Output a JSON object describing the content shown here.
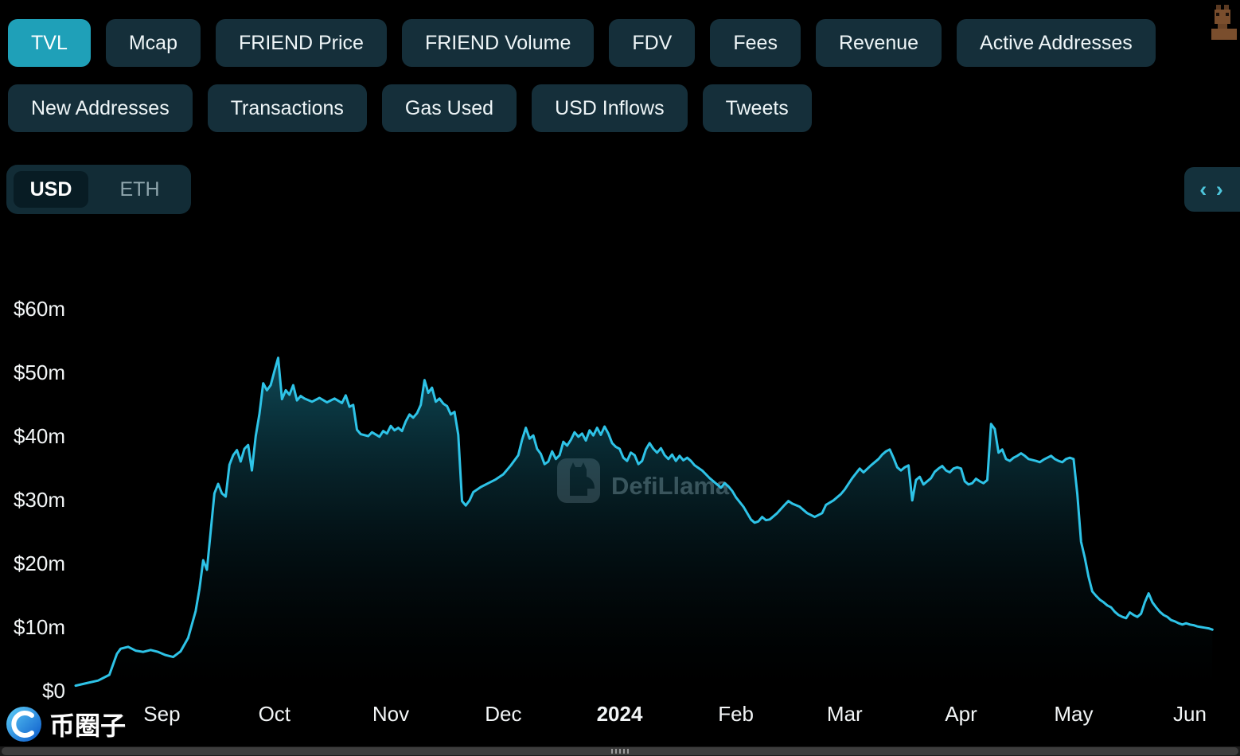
{
  "header": {
    "metrics_row1": [
      {
        "label": "TVL",
        "active": true
      },
      {
        "label": "Mcap"
      },
      {
        "label": "FRIEND Price"
      },
      {
        "label": "FRIEND Volume"
      },
      {
        "label": "FDV"
      },
      {
        "label": "Fees"
      },
      {
        "label": "Revenue"
      },
      {
        "label": "Active Addresses"
      }
    ],
    "metrics_row2": [
      {
        "label": "New Addresses"
      },
      {
        "label": "Transactions"
      },
      {
        "label": "Gas Used"
      },
      {
        "label": "USD Inflows"
      },
      {
        "label": "Tweets"
      }
    ]
  },
  "controls": {
    "currency_options": [
      "USD",
      "ETH"
    ],
    "selected_currency": "USD",
    "embed_label": "‹ ›"
  },
  "watermark": {
    "text": "DefiLlama"
  },
  "footer_logo": {
    "text": "币圈子"
  },
  "colors": {
    "background": "#000000",
    "pill_bg": "#152f3a",
    "pill_active_bg": "#1fa0b8",
    "line": "#2ec3e7",
    "axis_text": "#f2f5f6"
  },
  "chart_data": {
    "type": "area",
    "metric": "TVL",
    "currency": "USD",
    "ylim": [
      0,
      60
    ],
    "grid": false,
    "y_ticks": [
      {
        "value": 0,
        "label": "$0"
      },
      {
        "value": 10,
        "label": "$10m"
      },
      {
        "value": 20,
        "label": "$20m"
      },
      {
        "value": 30,
        "label": "$30m"
      },
      {
        "value": 40,
        "label": "$40m"
      },
      {
        "value": 50,
        "label": "$50m"
      },
      {
        "value": 60,
        "label": "$60m"
      }
    ],
    "x_ticks": [
      {
        "date": "2023-09-01",
        "label": "Sep"
      },
      {
        "date": "2023-10-01",
        "label": "Oct"
      },
      {
        "date": "2023-11-01",
        "label": "Nov"
      },
      {
        "date": "2023-12-01",
        "label": "Dec"
      },
      {
        "date": "2024-01-01",
        "label": "2024",
        "bold": true
      },
      {
        "date": "2024-02-01",
        "label": "Feb"
      },
      {
        "date": "2024-03-01",
        "label": "Mar"
      },
      {
        "date": "2024-04-01",
        "label": "Apr"
      },
      {
        "date": "2024-05-01",
        "label": "May"
      },
      {
        "date": "2024-06-01",
        "label": "Jun"
      }
    ],
    "x_range": [
      "2023-08-09",
      "2024-06-08"
    ],
    "points": [
      [
        "2023-08-09",
        0.8
      ],
      [
        "2023-08-12",
        1.2
      ],
      [
        "2023-08-15",
        1.6
      ],
      [
        "2023-08-18",
        2.5
      ],
      [
        "2023-08-20",
        5.8
      ],
      [
        "2023-08-21",
        6.6
      ],
      [
        "2023-08-23",
        6.9
      ],
      [
        "2023-08-25",
        6.3
      ],
      [
        "2023-08-27",
        6.1
      ],
      [
        "2023-08-29",
        6.4
      ],
      [
        "2023-08-31",
        6.1
      ],
      [
        "2023-09-02",
        5.6
      ],
      [
        "2023-09-04",
        5.3
      ],
      [
        "2023-09-06",
        6.2
      ],
      [
        "2023-09-08",
        8.3
      ],
      [
        "2023-09-10",
        12.5
      ],
      [
        "2023-09-11",
        16.0
      ],
      [
        "2023-09-12",
        20.5
      ],
      [
        "2023-09-13",
        19.0
      ],
      [
        "2023-09-14",
        25.0
      ],
      [
        "2023-09-15",
        31.0
      ],
      [
        "2023-09-16",
        32.5
      ],
      [
        "2023-09-17",
        31.0
      ],
      [
        "2023-09-18",
        30.5
      ],
      [
        "2023-09-19",
        35.5
      ],
      [
        "2023-09-20",
        37.0
      ],
      [
        "2023-09-21",
        37.8
      ],
      [
        "2023-09-22",
        36.0
      ],
      [
        "2023-09-23",
        38.0
      ],
      [
        "2023-09-24",
        38.6
      ],
      [
        "2023-09-25",
        34.6
      ],
      [
        "2023-09-26",
        40.0
      ],
      [
        "2023-09-27",
        43.5
      ],
      [
        "2023-09-28",
        48.3
      ],
      [
        "2023-09-29",
        47.2
      ],
      [
        "2023-09-30",
        48.0
      ],
      [
        "2023-10-01",
        50.2
      ],
      [
        "2023-10-02",
        52.3
      ],
      [
        "2023-10-03",
        45.8
      ],
      [
        "2023-10-04",
        47.2
      ],
      [
        "2023-10-05",
        46.5
      ],
      [
        "2023-10-06",
        48.0
      ],
      [
        "2023-10-07",
        45.6
      ],
      [
        "2023-10-08",
        46.3
      ],
      [
        "2023-10-09",
        45.9
      ],
      [
        "2023-10-11",
        45.4
      ],
      [
        "2023-10-13",
        46.0
      ],
      [
        "2023-10-15",
        45.3
      ],
      [
        "2023-10-17",
        45.9
      ],
      [
        "2023-10-19",
        45.2
      ],
      [
        "2023-10-20",
        46.4
      ],
      [
        "2023-10-21",
        44.6
      ],
      [
        "2023-10-22",
        44.9
      ],
      [
        "2023-10-23",
        41.0
      ],
      [
        "2023-10-24",
        40.3
      ],
      [
        "2023-10-26",
        40.0
      ],
      [
        "2023-10-27",
        40.6
      ],
      [
        "2023-10-29",
        39.9
      ],
      [
        "2023-10-30",
        40.8
      ],
      [
        "2023-10-31",
        40.4
      ],
      [
        "2023-11-01",
        41.6
      ],
      [
        "2023-11-02",
        40.9
      ],
      [
        "2023-11-03",
        41.3
      ],
      [
        "2023-11-04",
        40.8
      ],
      [
        "2023-11-05",
        42.3
      ],
      [
        "2023-11-06",
        43.4
      ],
      [
        "2023-11-07",
        42.9
      ],
      [
        "2023-11-08",
        43.6
      ],
      [
        "2023-11-09",
        44.9
      ],
      [
        "2023-11-10",
        48.8
      ],
      [
        "2023-11-11",
        46.8
      ],
      [
        "2023-11-12",
        47.6
      ],
      [
        "2023-11-13",
        45.4
      ],
      [
        "2023-11-14",
        45.9
      ],
      [
        "2023-11-15",
        45.1
      ],
      [
        "2023-11-16",
        44.7
      ],
      [
        "2023-11-17",
        43.4
      ],
      [
        "2023-11-18",
        43.8
      ],
      [
        "2023-11-19",
        40.2
      ],
      [
        "2023-11-20",
        29.8
      ],
      [
        "2023-11-21",
        29.1
      ],
      [
        "2023-11-22",
        29.9
      ],
      [
        "2023-11-23",
        31.2
      ],
      [
        "2023-11-25",
        32.0
      ],
      [
        "2023-11-27",
        32.6
      ],
      [
        "2023-11-29",
        33.2
      ],
      [
        "2023-12-01",
        34.0
      ],
      [
        "2023-12-03",
        35.4
      ],
      [
        "2023-12-05",
        37.0
      ],
      [
        "2023-12-06",
        39.4
      ],
      [
        "2023-12-07",
        41.3
      ],
      [
        "2023-12-08",
        39.6
      ],
      [
        "2023-12-09",
        40.1
      ],
      [
        "2023-12-10",
        38.0
      ],
      [
        "2023-12-11",
        37.2
      ],
      [
        "2023-12-12",
        35.6
      ],
      [
        "2023-12-13",
        36.0
      ],
      [
        "2023-12-14",
        37.6
      ],
      [
        "2023-12-15",
        36.4
      ],
      [
        "2023-12-16",
        37.0
      ],
      [
        "2023-12-17",
        39.1
      ],
      [
        "2023-12-18",
        38.5
      ],
      [
        "2023-12-19",
        39.4
      ],
      [
        "2023-12-20",
        40.6
      ],
      [
        "2023-12-21",
        39.9
      ],
      [
        "2023-12-22",
        40.4
      ],
      [
        "2023-12-23",
        39.3
      ],
      [
        "2023-12-24",
        40.9
      ],
      [
        "2023-12-25",
        40.1
      ],
      [
        "2023-12-26",
        41.3
      ],
      [
        "2023-12-27",
        40.2
      ],
      [
        "2023-12-28",
        41.5
      ],
      [
        "2023-12-29",
        40.4
      ],
      [
        "2023-12-30",
        38.9
      ],
      [
        "2023-12-31",
        38.3
      ],
      [
        "2024-01-01",
        38.0
      ],
      [
        "2024-01-02",
        36.6
      ],
      [
        "2024-01-03",
        36.1
      ],
      [
        "2024-01-04",
        37.4
      ],
      [
        "2024-01-05",
        37.0
      ],
      [
        "2024-01-06",
        35.6
      ],
      [
        "2024-01-07",
        36.1
      ],
      [
        "2024-01-08",
        37.9
      ],
      [
        "2024-01-09",
        38.9
      ],
      [
        "2024-01-10",
        38.0
      ],
      [
        "2024-01-11",
        37.4
      ],
      [
        "2024-01-12",
        38.1
      ],
      [
        "2024-01-13",
        37.0
      ],
      [
        "2024-01-14",
        36.4
      ],
      [
        "2024-01-15",
        37.1
      ],
      [
        "2024-01-16",
        36.1
      ],
      [
        "2024-01-17",
        36.9
      ],
      [
        "2024-01-18",
        36.2
      ],
      [
        "2024-01-19",
        36.6
      ],
      [
        "2024-01-20",
        36.1
      ],
      [
        "2024-01-21",
        35.4
      ],
      [
        "2024-01-23",
        34.6
      ],
      [
        "2024-01-25",
        33.4
      ],
      [
        "2024-01-27",
        32.4
      ],
      [
        "2024-01-28",
        31.9
      ],
      [
        "2024-01-29",
        32.6
      ],
      [
        "2024-01-30",
        32.1
      ],
      [
        "2024-01-31",
        31.4
      ],
      [
        "2024-02-01",
        30.4
      ],
      [
        "2024-02-03",
        28.9
      ],
      [
        "2024-02-05",
        26.9
      ],
      [
        "2024-02-06",
        26.4
      ],
      [
        "2024-02-07",
        26.6
      ],
      [
        "2024-02-08",
        27.3
      ],
      [
        "2024-02-09",
        26.8
      ],
      [
        "2024-02-10",
        26.9
      ],
      [
        "2024-02-12",
        27.9
      ],
      [
        "2024-02-14",
        29.2
      ],
      [
        "2024-02-15",
        29.8
      ],
      [
        "2024-02-16",
        29.4
      ],
      [
        "2024-02-18",
        28.9
      ],
      [
        "2024-02-20",
        27.9
      ],
      [
        "2024-02-22",
        27.3
      ],
      [
        "2024-02-24",
        27.9
      ],
      [
        "2024-02-25",
        29.2
      ],
      [
        "2024-02-27",
        29.9
      ],
      [
        "2024-02-29",
        30.9
      ],
      [
        "2024-03-01",
        31.6
      ],
      [
        "2024-03-03",
        33.4
      ],
      [
        "2024-03-05",
        34.9
      ],
      [
        "2024-03-06",
        34.3
      ],
      [
        "2024-03-08",
        35.4
      ],
      [
        "2024-03-10",
        36.4
      ],
      [
        "2024-03-11",
        37.1
      ],
      [
        "2024-03-12",
        37.6
      ],
      [
        "2024-03-13",
        37.9
      ],
      [
        "2024-03-14",
        36.6
      ],
      [
        "2024-03-15",
        35.1
      ],
      [
        "2024-03-16",
        34.6
      ],
      [
        "2024-03-17",
        35.1
      ],
      [
        "2024-03-18",
        35.4
      ],
      [
        "2024-03-19",
        29.9
      ],
      [
        "2024-03-20",
        33.1
      ],
      [
        "2024-03-21",
        33.6
      ],
      [
        "2024-03-22",
        32.4
      ],
      [
        "2024-03-23",
        32.9
      ],
      [
        "2024-03-24",
        33.4
      ],
      [
        "2024-03-25",
        34.4
      ],
      [
        "2024-03-26",
        34.9
      ],
      [
        "2024-03-27",
        35.3
      ],
      [
        "2024-03-28",
        34.6
      ],
      [
        "2024-03-29",
        34.3
      ],
      [
        "2024-03-30",
        34.9
      ],
      [
        "2024-03-31",
        35.1
      ],
      [
        "2024-04-01",
        34.9
      ],
      [
        "2024-04-02",
        32.9
      ],
      [
        "2024-04-03",
        32.4
      ],
      [
        "2024-04-04",
        32.6
      ],
      [
        "2024-04-05",
        33.3
      ],
      [
        "2024-04-06",
        32.9
      ],
      [
        "2024-04-07",
        32.6
      ],
      [
        "2024-04-08",
        33.1
      ],
      [
        "2024-04-09",
        41.9
      ],
      [
        "2024-04-10",
        41.1
      ],
      [
        "2024-04-11",
        37.4
      ],
      [
        "2024-04-12",
        37.9
      ],
      [
        "2024-04-13",
        36.4
      ],
      [
        "2024-04-14",
        36.1
      ],
      [
        "2024-04-15",
        36.6
      ],
      [
        "2024-04-16",
        36.9
      ],
      [
        "2024-04-17",
        37.3
      ],
      [
        "2024-04-18",
        36.9
      ],
      [
        "2024-04-19",
        36.4
      ],
      [
        "2024-04-21",
        36.1
      ],
      [
        "2024-04-22",
        35.9
      ],
      [
        "2024-04-23",
        36.3
      ],
      [
        "2024-04-24",
        36.6
      ],
      [
        "2024-04-25",
        36.9
      ],
      [
        "2024-04-26",
        36.4
      ],
      [
        "2024-04-27",
        36.1
      ],
      [
        "2024-04-28",
        35.9
      ],
      [
        "2024-04-29",
        36.4
      ],
      [
        "2024-04-30",
        36.6
      ],
      [
        "2024-05-01",
        36.4
      ],
      [
        "2024-05-02",
        30.9
      ],
      [
        "2024-05-03",
        23.4
      ],
      [
        "2024-05-04",
        20.9
      ],
      [
        "2024-05-05",
        17.9
      ],
      [
        "2024-05-06",
        15.6
      ],
      [
        "2024-05-07",
        14.9
      ],
      [
        "2024-05-08",
        14.3
      ],
      [
        "2024-05-09",
        13.9
      ],
      [
        "2024-05-10",
        13.4
      ],
      [
        "2024-05-11",
        13.1
      ],
      [
        "2024-05-12",
        12.4
      ],
      [
        "2024-05-13",
        11.9
      ],
      [
        "2024-05-14",
        11.6
      ],
      [
        "2024-05-15",
        11.4
      ],
      [
        "2024-05-16",
        12.3
      ],
      [
        "2024-05-17",
        11.9
      ],
      [
        "2024-05-18",
        11.6
      ],
      [
        "2024-05-19",
        12.1
      ],
      [
        "2024-05-20",
        13.9
      ],
      [
        "2024-05-21",
        15.3
      ],
      [
        "2024-05-22",
        13.9
      ],
      [
        "2024-05-23",
        13.1
      ],
      [
        "2024-05-24",
        12.4
      ],
      [
        "2024-05-25",
        11.9
      ],
      [
        "2024-05-26",
        11.6
      ],
      [
        "2024-05-27",
        11.1
      ],
      [
        "2024-05-28",
        10.9
      ],
      [
        "2024-05-29",
        10.6
      ],
      [
        "2024-05-30",
        10.4
      ],
      [
        "2024-05-31",
        10.6
      ],
      [
        "2024-06-01",
        10.4
      ],
      [
        "2024-06-02",
        10.3
      ],
      [
        "2024-06-03",
        10.1
      ],
      [
        "2024-06-04",
        10.0
      ],
      [
        "2024-06-05",
        9.9
      ],
      [
        "2024-06-06",
        9.8
      ],
      [
        "2024-06-07",
        9.6
      ]
    ]
  }
}
